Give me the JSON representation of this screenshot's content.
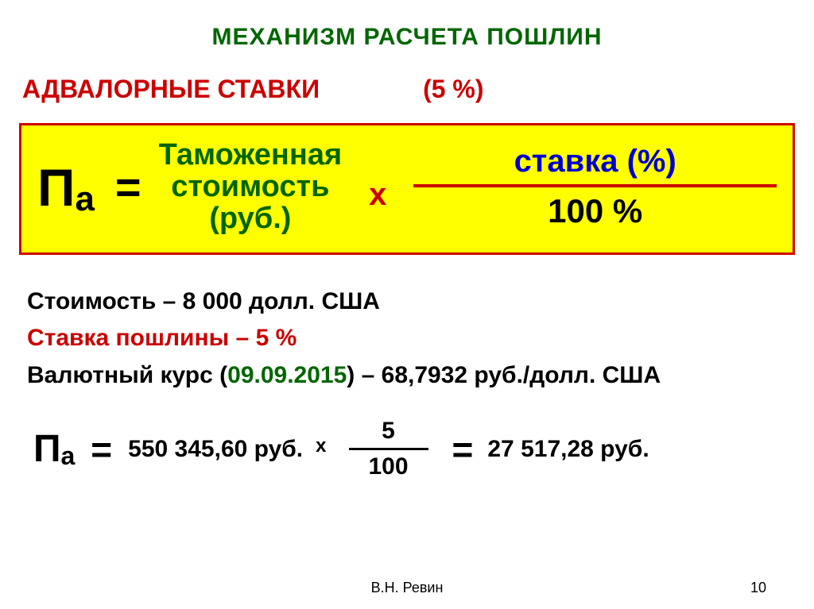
{
  "title": "МЕХАНИЗМ РАСЧЕТА ПОШЛИН",
  "subtitle": {
    "label": "АДВАЛОРНЫЕ СТАВКИ",
    "rate": "(5 %)"
  },
  "formula": {
    "symbol": "П",
    "subscript": "а",
    "equals": "=",
    "term1_l1": "Таможенная",
    "term1_l2": "стоимость",
    "term1_l3": "(руб.)",
    "mult": "х",
    "frac_top": "ставка (%)",
    "frac_bot": "100 %"
  },
  "given": {
    "cost_label": "Стоимость – ",
    "cost_value": "8 000 долл. США",
    "rate_label": "Ставка пошлины – ",
    "rate_value": "5 %",
    "fx_label": "Валютный курс (",
    "fx_date": "09.09.2015",
    "fx_tail": ") – 68,7932 руб./долл. США"
  },
  "calc": {
    "symbol": "П",
    "subscript": "а",
    "equals": "=",
    "value": "550 345,60 руб.",
    "mult": "х",
    "frac_top": "5",
    "frac_bot": "100",
    "equals2": "=",
    "result": "27 517,28 руб."
  },
  "footer": "В.Н. Ревин",
  "page": "10",
  "colors": {
    "title": "#006600",
    "accent_red": "#cc0000",
    "formula_bg": "#ffff00",
    "blue": "#0000d0"
  }
}
